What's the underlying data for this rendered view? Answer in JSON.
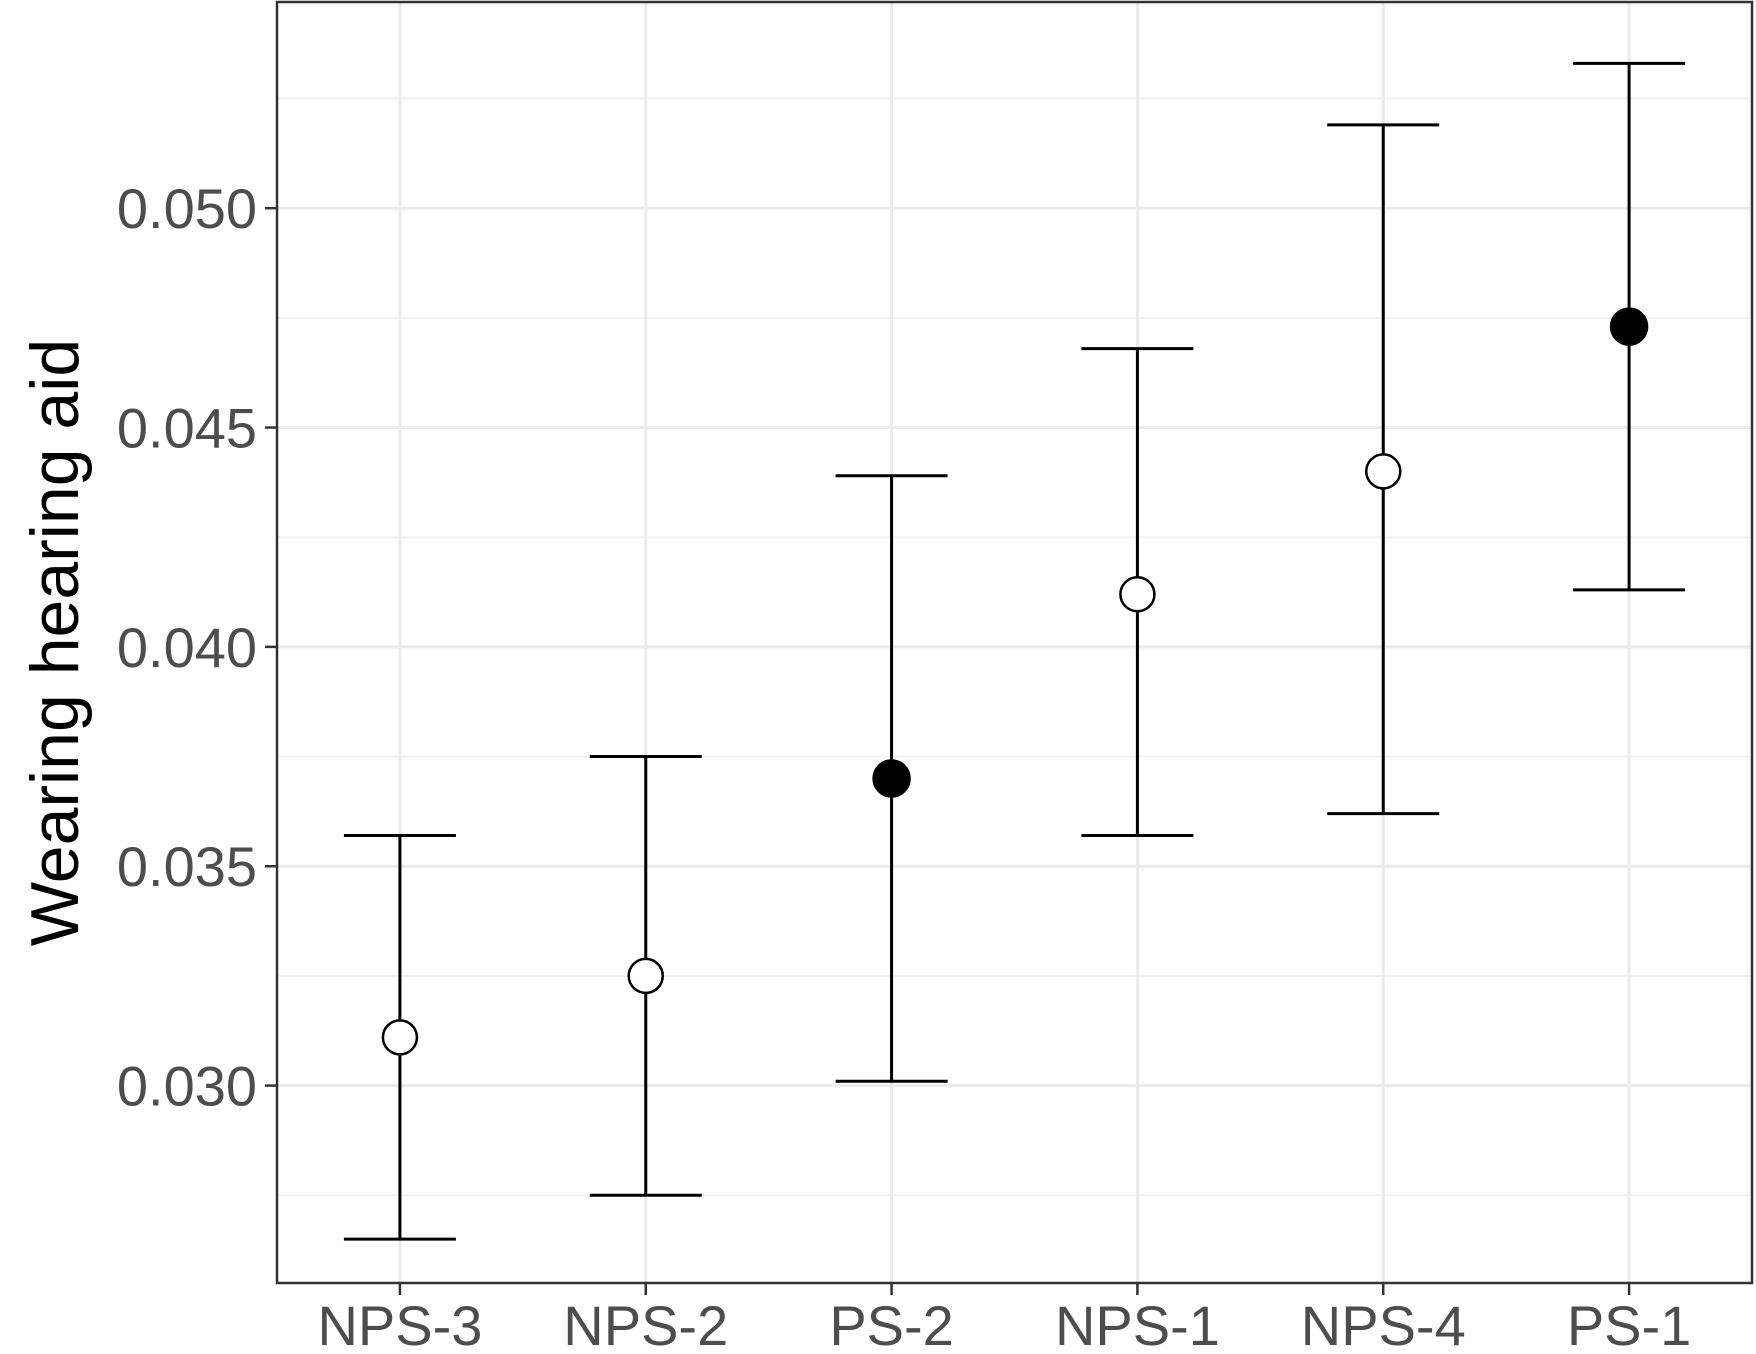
{
  "chart_data": {
    "type": "scatter",
    "subtype": "point-with-error-bars",
    "title": "",
    "xlabel": "",
    "ylabel": "Wearing hearing aid",
    "categories": [
      "NPS-3",
      "NPS-2",
      "PS-2",
      "NPS-1",
      "NPS-4",
      "PS-1"
    ],
    "points": [
      {
        "category": "NPS-3",
        "estimate": 0.0311,
        "lower": 0.0265,
        "upper": 0.0357,
        "marker": "open"
      },
      {
        "category": "NPS-2",
        "estimate": 0.0325,
        "lower": 0.0275,
        "upper": 0.0375,
        "marker": "open"
      },
      {
        "category": "PS-2",
        "estimate": 0.037,
        "lower": 0.0301,
        "upper": 0.0439,
        "marker": "filled"
      },
      {
        "category": "NPS-1",
        "estimate": 0.0412,
        "lower": 0.0357,
        "upper": 0.0468,
        "marker": "open"
      },
      {
        "category": "NPS-4",
        "estimate": 0.044,
        "lower": 0.0362,
        "upper": 0.0519,
        "marker": "open"
      },
      {
        "category": "PS-1",
        "estimate": 0.0473,
        "lower": 0.0413,
        "upper": 0.0533,
        "marker": "filled"
      }
    ],
    "yticks": [
      0.03,
      0.035,
      0.04,
      0.045,
      0.05
    ],
    "ytick_labels": [
      "0.030",
      "0.035",
      "0.040",
      "0.045",
      "0.050"
    ],
    "ylim": [
      0.0255,
      0.0547
    ],
    "grid": true,
    "legend": "none",
    "colors": {
      "line": "#000000",
      "grid": "#ebebeb",
      "border": "#333333",
      "tick_text": "#4d4d4d"
    }
  }
}
